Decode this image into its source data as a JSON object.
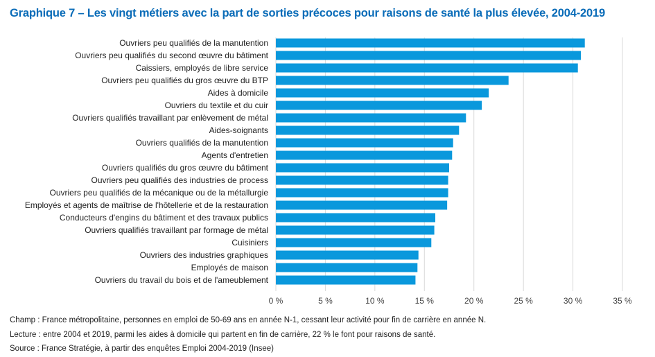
{
  "title": "Graphique 7 – Les vingt métiers avec la part de sorties précoces pour raisons de santé la plus élevée, 2004-2019",
  "notes": {
    "champ": "Champ : France métropolitaine, personnes en emploi de 50-69 ans en année N-1, cessant leur activité pour fin de carrière en année N.",
    "lecture": "Lecture : entre 2004 et 2019, parmi les aides à domicile qui partent en fin de carrière, 22 % le font pour raisons de santé.",
    "source": "Source : France Stratégie, à partir des enquêtes Emploi 2004-2019 (Insee)"
  },
  "colors": {
    "bar": "#0a98dc",
    "title": "#0a6cb8",
    "grid": "#d9d9d9"
  },
  "chart_data": {
    "type": "bar",
    "orientation": "horizontal",
    "categories": [
      "Ouvriers peu qualifiés de la manutention",
      "Ouvriers peu qualifiés du second œuvre du bâtiment",
      "Caissiers, employés de libre service",
      "Ouvriers peu qualifiés du gros œuvre du BTP",
      "Aides à domicile",
      "Ouvriers du textile et du cuir",
      "Ouvriers qualifiés travaillant par enlèvement de métal",
      "Aides-soignants",
      "Ouvriers qualifiés de la manutention",
      "Agents d'entretien",
      "Ouvriers qualifiés du gros œuvre du bâtiment",
      "Ouvriers peu qualifiés des industries de process",
      "Ouvriers peu qualifiés de la mécanique ou de la métallurgie",
      "Employés et agents de maîtrise de l'hôtellerie et de la restauration",
      "Conducteurs d'engins du bâtiment et des travaux publics",
      "Ouvriers qualifiés travaillant par formage de métal",
      "Cuisiniers",
      "Ouvriers des industries graphiques",
      "Employés de maison",
      "Ouvriers du travail du bois et de l'ameublement"
    ],
    "values": [
      31.2,
      30.8,
      30.5,
      23.5,
      21.5,
      20.8,
      19.2,
      18.5,
      17.9,
      17.8,
      17.5,
      17.4,
      17.4,
      17.3,
      16.1,
      16.0,
      15.7,
      14.4,
      14.3,
      14.1
    ],
    "xlim": [
      0,
      35
    ],
    "xticks": [
      0,
      5,
      10,
      15,
      20,
      25,
      30,
      35
    ],
    "tick_labels": [
      "0 %",
      "5 %",
      "10 %",
      "15 %",
      "20 %",
      "25 %",
      "30 %",
      "35 %"
    ],
    "grid": true,
    "legend": "none"
  }
}
